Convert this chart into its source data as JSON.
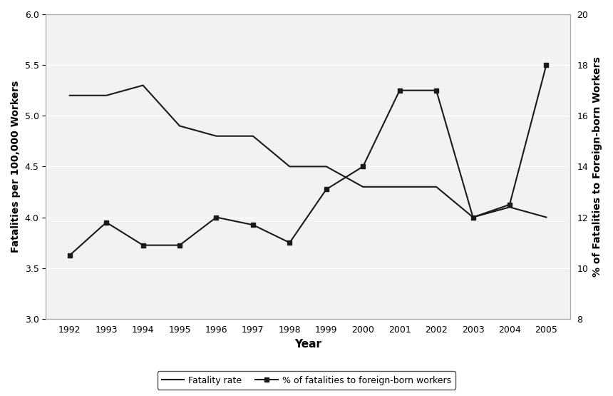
{
  "years": [
    1992,
    1993,
    1994,
    1995,
    1996,
    1997,
    1998,
    1999,
    2000,
    2001,
    2002,
    2003,
    2004,
    2005
  ],
  "fatality_rate": [
    5.2,
    5.2,
    5.3,
    4.9,
    4.8,
    4.8,
    4.5,
    4.5,
    4.3,
    4.3,
    4.3,
    4.0,
    4.1,
    4.0
  ],
  "foreign_born_pct": [
    10.5,
    11.8,
    10.9,
    10.9,
    12.0,
    11.7,
    11.0,
    13.1,
    14.0,
    17.0,
    17.0,
    12.0,
    12.5,
    18.0
  ],
  "ylabel_left": "Fatalities per 100,000 Workers",
  "ylabel_right": "% of Fatalities to Foreign-born Workers",
  "xlabel": "Year",
  "ylim_left": [
    3.0,
    6.0
  ],
  "ylim_right": [
    8,
    20
  ],
  "yticks_left": [
    3.0,
    3.5,
    4.0,
    4.5,
    5.0,
    5.5,
    6.0
  ],
  "yticks_right": [
    8,
    10,
    12,
    14,
    16,
    18,
    20
  ],
  "legend_labels": [
    "Fatality rate",
    "% of fatalities to foreign-born workers"
  ],
  "line_color": "#1a1a1a",
  "bg_color": "#f2f2f2",
  "plot_bg": "#f2f2f2",
  "title": ""
}
